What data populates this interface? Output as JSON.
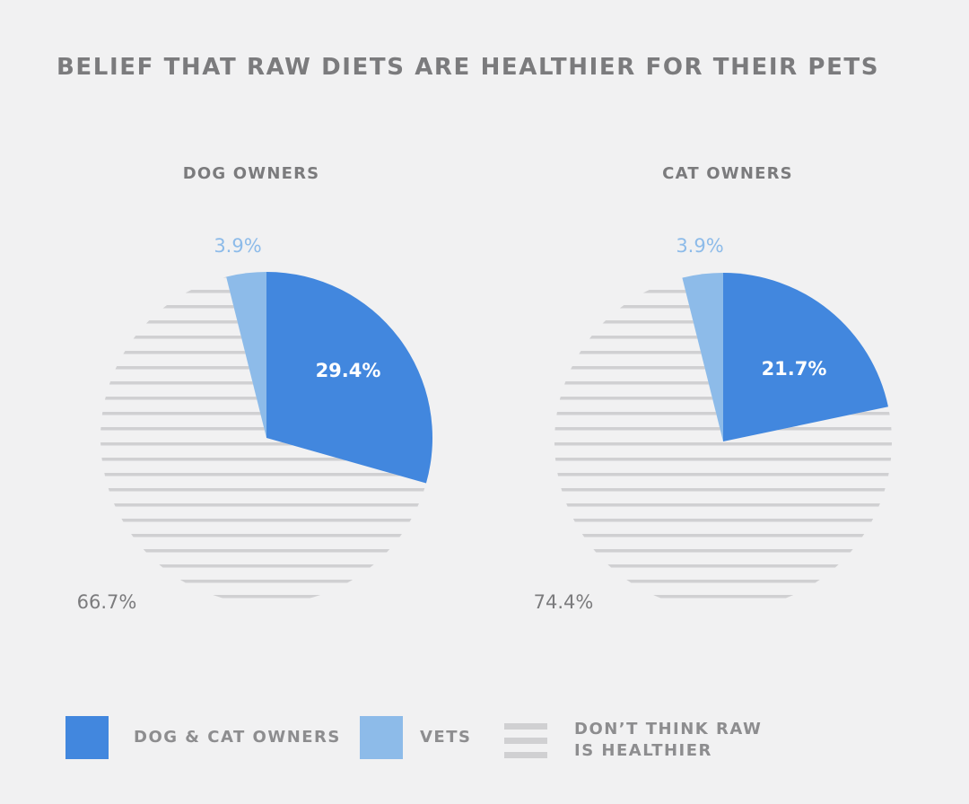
{
  "title": "BELIEF THAT RAW DIETS ARE HEALTHIER FOR THEIR PETS",
  "colors": {
    "owners": "#4287de",
    "vets": "#8dbbe9",
    "dont_think": "#d0d0d2",
    "text": "#7b7b7d",
    "background": "#f1f1f2"
  },
  "legend": [
    {
      "key": "owners",
      "label_lines": [
        "DOG & CAT OWNERS"
      ]
    },
    {
      "key": "vets",
      "label_lines": [
        "VETS"
      ]
    },
    {
      "key": "dont_think",
      "label_lines": [
        "DON’T THINK RAW",
        "IS HEALTHIER"
      ]
    }
  ],
  "chart_data": [
    {
      "type": "pie",
      "title": "DOG OWNERS",
      "slices": [
        {
          "key": "owners",
          "value": 29.4,
          "label": "29.4%"
        },
        {
          "key": "dont_think",
          "value": 66.7,
          "label": "66.7%"
        },
        {
          "key": "vets",
          "value": 3.9,
          "label": "3.9%"
        }
      ],
      "owners_slice_exploded": true
    },
    {
      "type": "pie",
      "title": "CAT OWNERS",
      "slices": [
        {
          "key": "owners",
          "value": 21.7,
          "label": "21.7%"
        },
        {
          "key": "dont_think",
          "value": 74.4,
          "label": "74.4%"
        },
        {
          "key": "vets",
          "value": 3.9,
          "label": "3.9%"
        }
      ],
      "owners_slice_exploded": true
    }
  ]
}
